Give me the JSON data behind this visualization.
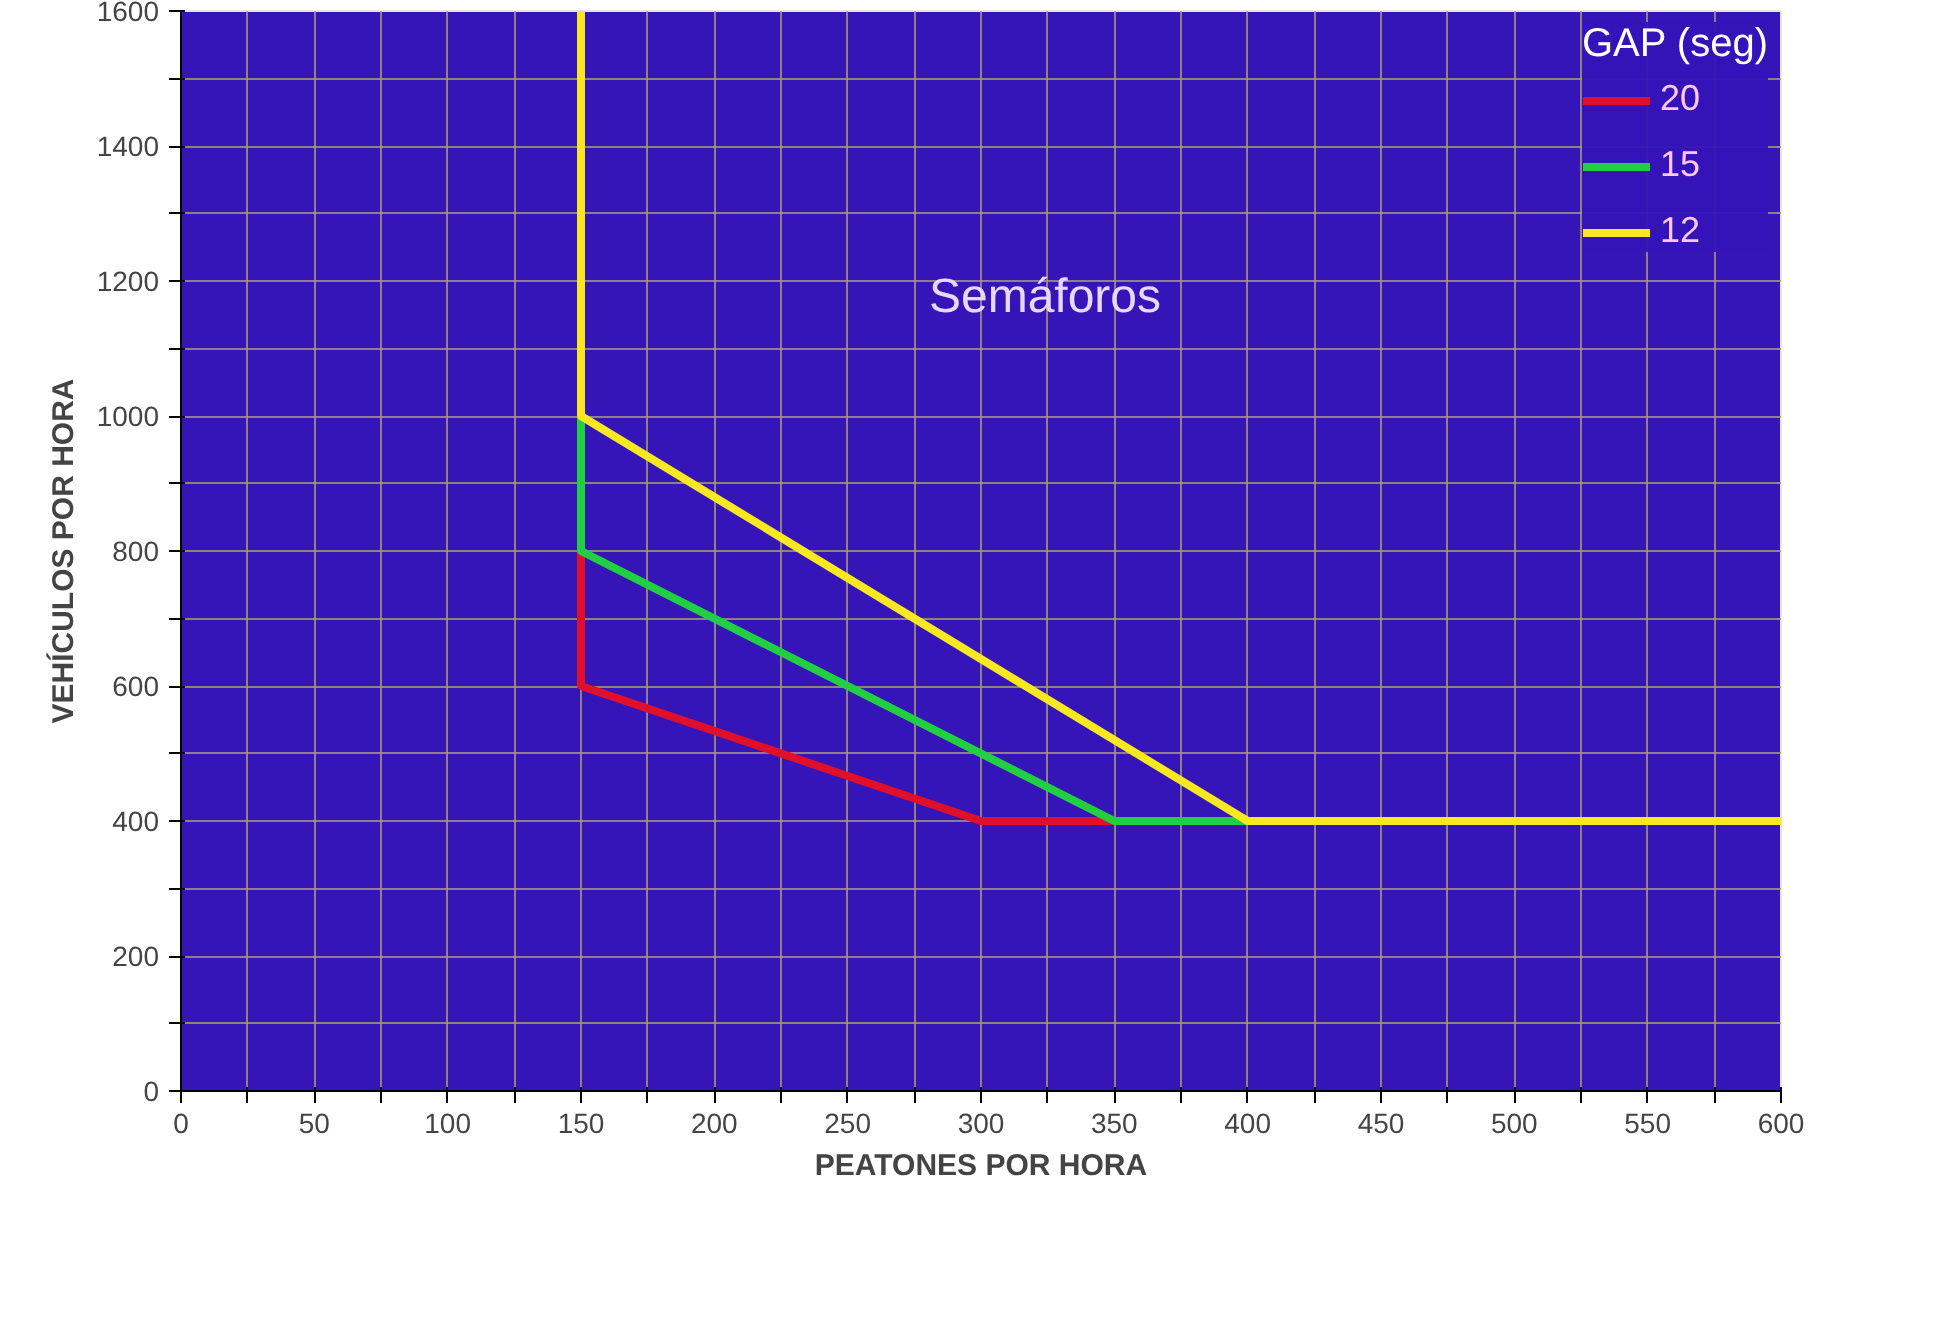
{
  "chart_data": {
    "type": "line",
    "xlabel": "PEATONES POR HORA",
    "ylabel": "VEHÍCULOS POR HORA",
    "legend_title": "GAP (seg)",
    "annotations": [
      "Semáforos"
    ],
    "series": [
      {
        "name": "20",
        "color": "#e0102a",
        "x": [
          150,
          150,
          300,
          350
        ],
        "values": [
          800,
          600,
          400,
          400
        ]
      },
      {
        "name": "15",
        "color": "#20d040",
        "x": [
          150,
          150,
          350,
          400
        ],
        "values": [
          1000,
          800,
          400,
          400
        ]
      },
      {
        "name": "12",
        "color": "#f8e820",
        "x": [
          150,
          150,
          400,
          600
        ],
        "values": [
          1600,
          1000,
          400,
          400
        ]
      }
    ],
    "xlim": [
      0,
      600
    ],
    "ylim": [
      0,
      1600
    ],
    "xticks": [
      0,
      {
        "value": 25,
        "label": null
      },
      50,
      {
        "value": 75,
        "label": null
      },
      100,
      {
        "value": 125,
        "label": null
      },
      150,
      {
        "value": 175,
        "label": null
      },
      200,
      {
        "value": 225,
        "label": null
      },
      250,
      {
        "value": 275,
        "label": null
      },
      300,
      {
        "value": 325,
        "label": null
      },
      350,
      {
        "value": 375,
        "label": null
      },
      400,
      {
        "value": 425,
        "label": null
      },
      450,
      {
        "value": 475,
        "label": null
      },
      500,
      {
        "value": 525,
        "label": null
      },
      550,
      {
        "value": 575,
        "label": null
      },
      600
    ],
    "yticks": [
      0,
      {
        "value": 100,
        "label": null
      },
      200,
      {
        "value": 300,
        "label": null
      },
      400,
      {
        "value": 500,
        "label": null
      },
      600,
      {
        "value": 700,
        "label": null
      },
      800,
      {
        "value": 900,
        "label": null
      },
      1000,
      {
        "value": 1100,
        "label": null
      },
      1200,
      {
        "value": 1300,
        "label": null
      },
      1400,
      {
        "value": 1500,
        "label": null
      },
      1600
    ],
    "grid": true,
    "legend": "top right",
    "marker": "none",
    "line_style": "solid"
  }
}
